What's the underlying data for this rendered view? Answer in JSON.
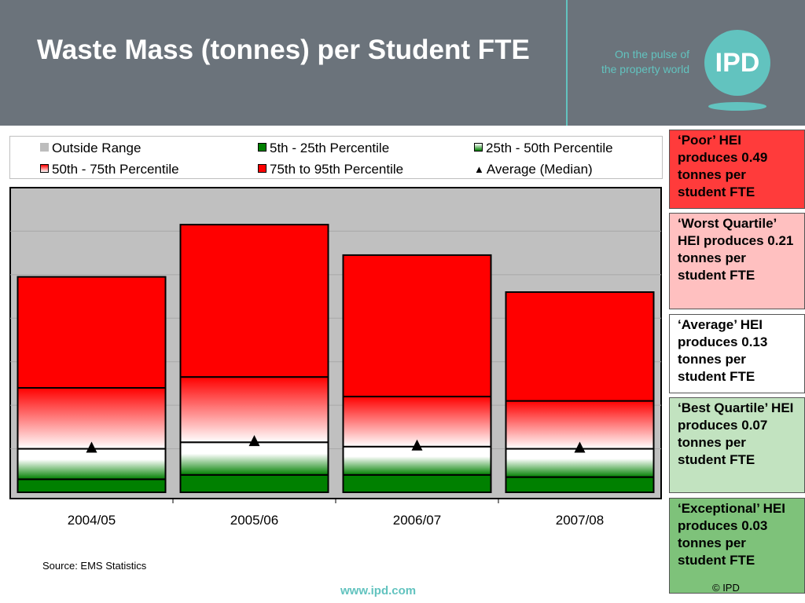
{
  "header": {
    "title": "Waste Mass (tonnes) per Student FTE",
    "tagline_line1": "On the pulse of",
    "tagline_line2": "the property world",
    "logo_text": "IPD"
  },
  "chart_data": {
    "type": "bar",
    "stacked": true,
    "title": "",
    "xlabel": "",
    "ylabel": "",
    "ylim": [
      0,
      0.7
    ],
    "grid": true,
    "legend_placement": "top",
    "categories": [
      "2004/05",
      "2005/06",
      "2006/07",
      "2007/08"
    ],
    "series": [
      {
        "name": "5th - 25th Percentile",
        "values": [
          0.03,
          0.04,
          0.04,
          0.035
        ],
        "color": "#008000"
      },
      {
        "name": "25th - 50th Percentile",
        "values": [
          0.07,
          0.075,
          0.065,
          0.065
        ],
        "color": "#ffffff"
      },
      {
        "name": "50th - 75th Percentile",
        "values": [
          0.14,
          0.15,
          0.115,
          0.11
        ],
        "color": "#ff0000"
      },
      {
        "name": "75th to 95th Percentile",
        "values": [
          0.255,
          0.35,
          0.325,
          0.25
        ],
        "color": "#ff0000"
      }
    ],
    "average_median": {
      "name": "Average (Median)",
      "values": [
        0.102,
        0.117,
        0.107,
        0.102
      ]
    },
    "legend": [
      {
        "label": "Outside Range",
        "swatch": "outside"
      },
      {
        "label": "5th - 25th Percentile",
        "swatch": "p5_25"
      },
      {
        "label": "25th - 50th Percentile",
        "swatch": "p25_50"
      },
      {
        "label": "50th - 75th Percentile",
        "swatch": "p50_75"
      },
      {
        "label": "75th to 95th Percentile",
        "swatch": "p75_95"
      },
      {
        "label": "Average (Median)",
        "swatch": "triangle"
      }
    ]
  },
  "callouts": [
    {
      "text": "‘Poor’ HEI produces 0.49 tonnes per student FTE",
      "bg": "#ff3b3b"
    },
    {
      "text": "‘Worst Quartile’ HEI produces 0.21 tonnes per student FTE",
      "bg": "#ffc0c0"
    },
    {
      "text": "‘Average’ HEI produces 0.13 tonnes per student FTE",
      "bg": "#ffffff"
    },
    {
      "text": "‘Best Quartile’ HEI produces 0.07 tonnes per student FTE",
      "bg": "#c2e3c0"
    },
    {
      "text": "‘Exceptional’ HEI produces 0.03 tonnes per student FTE",
      "bg": "#7ec27a"
    }
  ],
  "footer": {
    "source": "Source: EMS Statistics",
    "url": "www.ipd.com",
    "copyright": "© IPD"
  }
}
